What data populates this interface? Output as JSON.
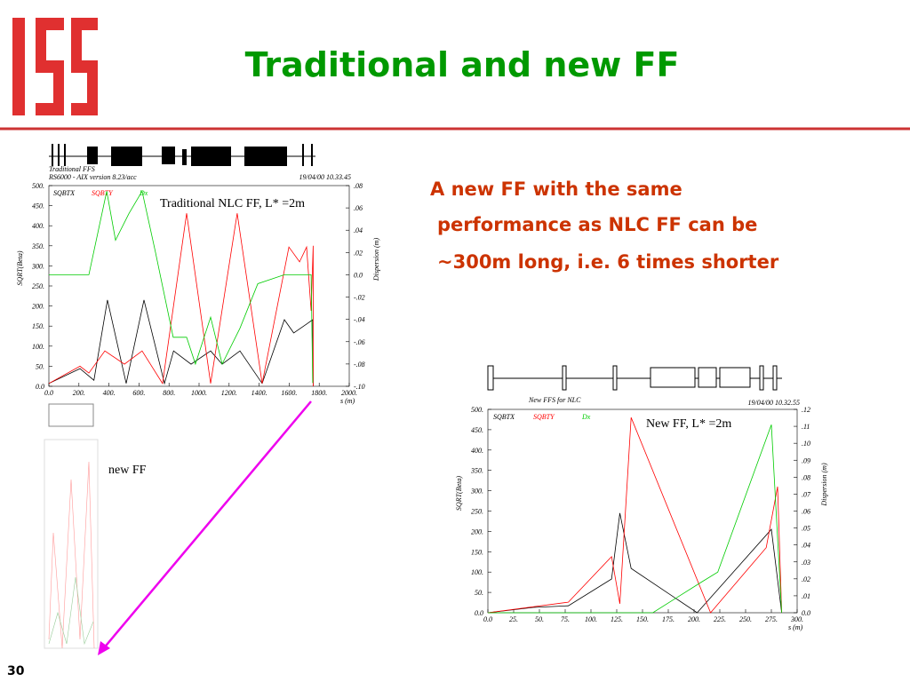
{
  "header": {
    "title": "Traditional and new FF",
    "slide_number": "30"
  },
  "text": {
    "lines": [
      "A new FF with the same",
      "performance as NLC FF can be",
      "~300m long, i.e. 6 times shorter"
    ],
    "small_label": "new FF"
  },
  "chart_data": [
    {
      "type": "line",
      "title": "Traditional FFS",
      "subtitle": "RS6000 - AIX version 8.23/acc",
      "date": "19/04/00  10.33.45",
      "annotation": "Traditional NLC FF, L* =2m",
      "ylabel": "SQRT(Beta)",
      "y2label": "Dispersion  (m)",
      "xlabel": "s (m)",
      "xlim": [
        0,
        2000
      ],
      "ylim": [
        0,
        500
      ],
      "y2lim": [
        -0.1,
        0.08
      ],
      "xticks": [
        {
          "value": 0,
          "label": "0.0"
        },
        {
          "value": 200,
          "label": "200."
        },
        {
          "value": 400,
          "label": "400."
        },
        {
          "value": 600,
          "label": "600."
        },
        {
          "value": 800,
          "label": "800."
        },
        {
          "value": 1000,
          "label": "1000."
        },
        {
          "value": 1200,
          "label": "1200."
        },
        {
          "value": 1400,
          "label": "1400."
        },
        {
          "value": 1600,
          "label": "1600."
        },
        {
          "value": 1800,
          "label": "1800."
        },
        {
          "value": 2000,
          "label": "2000."
        }
      ],
      "yticks": [
        {
          "value": 0,
          "label": "0.0"
        },
        {
          "value": 50,
          "label": "50."
        },
        {
          "value": 100,
          "label": "100."
        },
        {
          "value": 150,
          "label": "150."
        },
        {
          "value": 200,
          "label": "200."
        },
        {
          "value": 250,
          "label": "250."
        },
        {
          "value": 300,
          "label": "300."
        },
        {
          "value": 350,
          "label": "350."
        },
        {
          "value": 400,
          "label": "400."
        },
        {
          "value": 450,
          "label": "450."
        },
        {
          "value": 500,
          "label": "500."
        }
      ],
      "y2ticks": [
        {
          "value": -0.1,
          "label": "-.10"
        },
        {
          "value": -0.08,
          "label": "-.08"
        },
        {
          "value": -0.06,
          "label": "-.06"
        },
        {
          "value": -0.04,
          "label": "-.04"
        },
        {
          "value": -0.02,
          "label": "-.02"
        },
        {
          "value": 0,
          "label": "0.0"
        },
        {
          "value": 0.02,
          "label": ".02"
        },
        {
          "value": 0.04,
          "label": ".04"
        },
        {
          "value": 0.06,
          "label": ".06"
        },
        {
          "value": 0.08,
          "label": ".08"
        }
      ],
      "series": [
        {
          "name": "SQBTX",
          "color": "#000000",
          "x": [
            0,
            207,
            300,
            390,
            515,
            633,
            770,
            830,
            947,
            1077,
            1154,
            1272,
            1420,
            1568,
            1630,
            1716,
            1757,
            1760
          ],
          "values": [
            7,
            44,
            15,
            215,
            7,
            215,
            7,
            88,
            55,
            88,
            55,
            88,
            7,
            166,
            133,
            155,
            166,
            0
          ]
        },
        {
          "name": "SQBTY",
          "color": "#ff0000",
          "x": [
            0,
            207,
            266,
            373,
            503,
            621,
            757,
            917,
            1077,
            1254,
            1420,
            1598,
            1669,
            1716,
            1746,
            1760,
            1760
          ],
          "values": [
            7,
            50,
            33,
            88,
            55,
            88,
            7,
            431,
            7,
            431,
            7,
            347,
            310,
            347,
            188,
            350,
            0
          ]
        },
        {
          "name": "Dx",
          "color": "#00cc00",
          "axis": "y2",
          "x": [
            0,
            266,
            385,
            444,
            533,
            621,
            710,
            828,
            917,
            976,
            1077,
            1154,
            1272,
            1391,
            1568,
            1746,
            1757
          ],
          "values": [
            0,
            0,
            0.075,
            0.031,
            0.055,
            0.075,
            0.02,
            -0.056,
            -0.056,
            -0.08,
            -0.038,
            -0.08,
            -0.048,
            -0.008,
            0,
            0,
            -0.097
          ]
        }
      ]
    },
    {
      "type": "line",
      "title": "New FFS for NLC",
      "date": "19/04/00  10.32.55",
      "annotation": "New FF, L* =2m",
      "ylabel": "SQRT(Beta)",
      "y2label": "Dispersion  (m)",
      "xlabel": "s (m)",
      "xlim": [
        0,
        300
      ],
      "ylim": [
        0,
        500
      ],
      "y2lim": [
        0,
        0.12
      ],
      "xticks": [
        {
          "value": 0,
          "label": "0.0"
        },
        {
          "value": 25,
          "label": "25."
        },
        {
          "value": 50,
          "label": "50."
        },
        {
          "value": 75,
          "label": "75."
        },
        {
          "value": 100,
          "label": "100."
        },
        {
          "value": 125,
          "label": "125."
        },
        {
          "value": 150,
          "label": "150."
        },
        {
          "value": 175,
          "label": "175."
        },
        {
          "value": 200,
          "label": "200."
        },
        {
          "value": 225,
          "label": "225."
        },
        {
          "value": 250,
          "label": "250."
        },
        {
          "value": 275,
          "label": "275."
        },
        {
          "value": 300,
          "label": "300."
        }
      ],
      "yticks": [
        {
          "value": 0,
          "label": "0.0"
        },
        {
          "value": 50,
          "label": "50."
        },
        {
          "value": 100,
          "label": "100."
        },
        {
          "value": 150,
          "label": "150."
        },
        {
          "value": 200,
          "label": "200."
        },
        {
          "value": 250,
          "label": "250."
        },
        {
          "value": 300,
          "label": "300."
        },
        {
          "value": 350,
          "label": "350."
        },
        {
          "value": 400,
          "label": "400."
        },
        {
          "value": 450,
          "label": "450."
        },
        {
          "value": 500,
          "label": "500."
        }
      ],
      "y2ticks": [
        {
          "value": 0,
          "label": "0.0"
        },
        {
          "value": 0.01,
          "label": ".01"
        },
        {
          "value": 0.02,
          "label": ".02"
        },
        {
          "value": 0.03,
          "label": ".03"
        },
        {
          "value": 0.04,
          "label": ".04"
        },
        {
          "value": 0.05,
          "label": ".05"
        },
        {
          "value": 0.06,
          "label": ".06"
        },
        {
          "value": 0.07,
          "label": ".07"
        },
        {
          "value": 0.08,
          "label": ".08"
        },
        {
          "value": 0.09,
          "label": ".09"
        },
        {
          "value": 0.1,
          "label": ".10"
        },
        {
          "value": 0.11,
          "label": ".11"
        },
        {
          "value": 0.12,
          "label": ".12"
        }
      ],
      "series": [
        {
          "name": "SQBTX",
          "color": "#000000",
          "x": [
            0,
            44,
            78,
            120,
            128,
            139,
            203,
            275,
            285
          ],
          "values": [
            0,
            13,
            17,
            83,
            245,
            109,
            0,
            205,
            0
          ]
        },
        {
          "name": "SQBTY",
          "color": "#ff0000",
          "x": [
            0,
            78,
            120,
            128,
            139,
            216,
            270,
            281,
            285
          ],
          "values": [
            0,
            26,
            138,
            22,
            480,
            0,
            160,
            310,
            0
          ]
        },
        {
          "name": "Dx",
          "color": "#00cc00",
          "axis": "y2",
          "x": [
            0,
            160,
            207,
            223,
            275,
            285
          ],
          "values": [
            0,
            0,
            0.018,
            0.024,
            0.111,
            0
          ]
        }
      ]
    }
  ]
}
